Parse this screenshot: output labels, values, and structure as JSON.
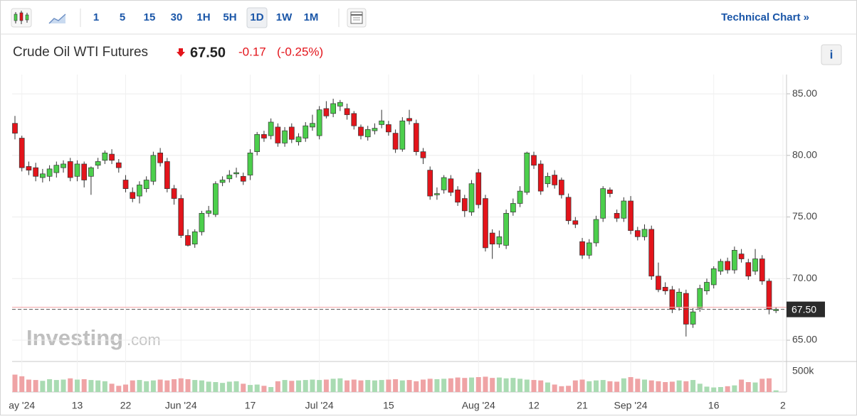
{
  "toolbar": {
    "intervals": [
      "1",
      "5",
      "15",
      "30",
      "1H",
      "5H",
      "1D",
      "1W",
      "1M"
    ],
    "selected": 6,
    "link": "Technical Chart »"
  },
  "header": {
    "title": "Crude Oil WTI Futures",
    "price": "67.50",
    "change": "-0.17",
    "change_pct": "(-0.25%)",
    "info": "i"
  },
  "watermark": {
    "brand": "Investing",
    "suffix": ".com"
  },
  "chart_data": {
    "type": "candlestick",
    "categories": [
      null,
      "ay '24",
      null,
      null,
      null,
      null,
      null,
      null,
      null,
      "13",
      null,
      null,
      null,
      null,
      null,
      null,
      "22",
      null,
      null,
      null,
      null,
      null,
      null,
      null,
      "Jun '24",
      null,
      null,
      null,
      null,
      null,
      null,
      null,
      null,
      null,
      "17",
      null,
      null,
      null,
      null,
      null,
      null,
      null,
      null,
      null,
      "Jul '24",
      null,
      null,
      null,
      null,
      null,
      null,
      null,
      null,
      null,
      "15",
      null,
      null,
      null,
      null,
      null,
      null,
      null,
      null,
      null,
      null,
      null,
      null,
      "Aug '24",
      null,
      null,
      null,
      null,
      null,
      null,
      null,
      "12",
      null,
      null,
      null,
      null,
      null,
      null,
      "21",
      null,
      null,
      null,
      null,
      null,
      null,
      "Sep '24",
      null,
      null,
      null,
      null,
      null,
      null,
      null,
      null,
      null,
      null,
      null,
      "16",
      null,
      null,
      null,
      null,
      null,
      null,
      null,
      null,
      null,
      "2"
    ],
    "open": [
      82.6,
      81.4,
      79.1,
      79.0,
      78.2,
      78.3,
      78.6,
      79.0,
      79.5,
      78.3,
      79.3,
      78.3,
      79.2,
      79.6,
      80.1,
      79.4,
      78.0,
      77.0,
      76.7,
      77.3,
      77.9,
      80.2,
      79.5,
      77.3,
      76.5,
      73.5,
      72.8,
      73.8,
      75.3,
      75.2,
      77.8,
      78.1,
      78.5,
      78.3,
      78.4,
      80.3,
      81.7,
      81.6,
      82.3,
      81.0,
      82.3,
      81.1,
      81.4,
      82.3,
      81.6,
      83.8,
      83.4,
      84.0,
      83.8,
      83.4,
      82.3,
      81.5,
      82.0,
      82.5,
      82.5,
      81.8,
      80.5,
      83.0,
      82.6,
      80.3,
      78.8,
      76.8,
      77.2,
      78.1,
      77.2,
      76.5,
      75.4,
      78.6,
      76.5,
      73.7,
      72.8,
      72.7,
      75.4,
      76.1,
      77.0,
      80.0,
      79.3,
      77.7,
      78.4,
      78.0,
      76.6,
      74.7,
      73.0,
      71.9,
      72.9,
      74.9,
      77.2,
      75.3,
      74.9,
      76.3,
      73.9,
      73.4,
      74.0,
      70.2,
      69.3,
      69.1,
      67.7,
      68.8,
      66.3,
      67.6,
      69.0,
      69.5,
      70.6,
      71.4,
      70.7,
      72.0,
      71.3,
      70.6,
      71.6,
      69.8,
      67.4,
      null
    ],
    "high": [
      83.2,
      81.6,
      79.5,
      79.4,
      78.9,
      79.2,
      79.5,
      79.6,
      79.8,
      79.6,
      79.5,
      79.1,
      79.8,
      80.4,
      80.5,
      79.7,
      78.4,
      77.4,
      77.9,
      78.3,
      80.3,
      80.6,
      79.8,
      77.6,
      76.8,
      74.0,
      74.0,
      75.5,
      75.9,
      77.9,
      78.3,
      78.8,
      79.0,
      78.6,
      80.5,
      81.9,
      82.0,
      83.0,
      82.6,
      82.3,
      82.6,
      81.8,
      82.7,
      83.3,
      84.0,
      84.4,
      84.6,
      84.5,
      84.2,
      83.6,
      82.5,
      82.4,
      82.6,
      83.7,
      82.8,
      82.1,
      83.1,
      83.7,
      82.9,
      80.6,
      79.1,
      77.4,
      78.4,
      78.4,
      77.5,
      76.8,
      78.0,
      78.9,
      76.8,
      74.0,
      73.9,
      75.6,
      76.5,
      77.5,
      80.3,
      80.3,
      79.6,
      78.6,
      78.8,
      78.2,
      76.9,
      75.0,
      73.3,
      73.2,
      75.1,
      77.5,
      77.4,
      75.6,
      76.6,
      76.7,
      74.2,
      74.4,
      74.3,
      71.3,
      69.7,
      69.4,
      69.2,
      69.1,
      67.6,
      69.5,
      70.0,
      71.0,
      71.6,
      71.7,
      72.6,
      72.4,
      71.6,
      72.4,
      71.9,
      70.0,
      67.7,
      null
    ],
    "low": [
      81.3,
      78.7,
      78.4,
      77.9,
      77.8,
      77.9,
      78.2,
      78.6,
      77.9,
      77.9,
      77.4,
      76.8,
      78.9,
      79.3,
      79.3,
      78.6,
      77.0,
      76.2,
      76.1,
      77.0,
      77.6,
      79.1,
      77.0,
      76.0,
      73.3,
      72.6,
      72.5,
      73.5,
      75.0,
      75.0,
      77.5,
      77.8,
      78.2,
      77.6,
      78.0,
      80.0,
      81.1,
      81.3,
      80.7,
      80.7,
      81.0,
      80.8,
      81.1,
      82.0,
      81.3,
      83.0,
      83.1,
      83.6,
      82.9,
      82.1,
      81.3,
      81.2,
      81.7,
      82.2,
      81.6,
      80.2,
      80.3,
      82.5,
      80.0,
      79.3,
      76.4,
      76.4,
      76.9,
      76.7,
      75.9,
      75.0,
      75.1,
      75.7,
      72.2,
      71.6,
      72.5,
      72.4,
      75.1,
      75.8,
      76.8,
      78.9,
      76.8,
      77.4,
      77.3,
      76.5,
      74.4,
      74.1,
      71.6,
      71.6,
      72.6,
      74.6,
      76.6,
      74.6,
      74.6,
      73.6,
      73.1,
      73.1,
      69.9,
      68.9,
      68.7,
      67.2,
      67.4,
      65.3,
      66.0,
      67.3,
      68.7,
      69.2,
      70.3,
      70.4,
      70.4,
      71.3,
      69.9,
      70.3,
      69.5,
      67.1,
      67.2,
      null
    ],
    "close": [
      81.8,
      79.0,
      78.8,
      78.3,
      78.5,
      78.9,
      79.2,
      79.3,
      78.2,
      79.3,
      78.0,
      79.0,
      79.5,
      80.2,
      79.6,
      79.0,
      77.3,
      76.5,
      77.6,
      78.0,
      80.0,
      79.4,
      77.3,
      76.5,
      73.5,
      72.7,
      73.8,
      75.3,
      75.5,
      77.7,
      78.0,
      78.4,
      78.6,
      77.9,
      80.2,
      81.7,
      81.4,
      82.7,
      81.0,
      82.0,
      81.3,
      81.5,
      82.4,
      82.6,
      83.7,
      83.2,
      84.2,
      84.3,
      83.3,
      82.4,
      81.6,
      82.1,
      82.2,
      82.8,
      81.9,
      80.5,
      82.8,
      82.8,
      80.3,
      79.8,
      76.7,
      76.9,
      78.2,
      77.0,
      76.2,
      75.5,
      77.7,
      76.0,
      72.5,
      72.8,
      73.4,
      75.3,
      76.1,
      77.1,
      80.2,
      79.2,
      77.1,
      78.3,
      77.6,
      76.8,
      74.7,
      74.4,
      71.9,
      72.9,
      74.8,
      77.3,
      76.9,
      74.9,
      76.3,
      73.9,
      73.4,
      74.0,
      70.2,
      69.1,
      69.0,
      67.5,
      68.9,
      66.3,
      67.3,
      69.2,
      69.7,
      70.8,
      71.4,
      70.7,
      72.3,
      71.6,
      70.2,
      71.6,
      69.8,
      67.5,
      67.5,
      null
    ],
    "volume": [
      420000,
      380000,
      300000,
      290000,
      270000,
      310000,
      290000,
      300000,
      330000,
      300000,
      310000,
      290000,
      280000,
      260000,
      200000,
      150000,
      180000,
      280000,
      290000,
      260000,
      280000,
      300000,
      280000,
      310000,
      330000,
      310000,
      290000,
      280000,
      250000,
      240000,
      220000,
      250000,
      260000,
      200000,
      170000,
      180000,
      150000,
      120000,
      260000,
      290000,
      270000,
      280000,
      290000,
      300000,
      290000,
      300000,
      320000,
      330000,
      280000,
      300000,
      280000,
      290000,
      280000,
      290000,
      300000,
      310000,
      280000,
      290000,
      260000,
      300000,
      320000,
      310000,
      320000,
      330000,
      350000,
      340000,
      350000,
      360000,
      370000,
      340000,
      350000,
      330000,
      340000,
      320000,
      300000,
      290000,
      280000,
      230000,
      180000,
      140000,
      150000,
      280000,
      300000,
      260000,
      280000,
      290000,
      260000,
      250000,
      330000,
      360000,
      320000,
      300000,
      280000,
      260000,
      240000,
      250000,
      280000,
      260000,
      290000,
      200000,
      130000,
      110000,
      120000,
      140000,
      160000,
      300000,
      240000,
      230000,
      320000,
      330000,
      40000,
      null
    ],
    "up_color": "#4ccf4c",
    "down_color": "#e3141b",
    "vol_up_color": "#a9dbb2",
    "vol_down_color": "#efa3a5",
    "ylim": [
      63.33,
      86.56
    ],
    "yticks": [
      {
        "value": 65,
        "label": "65.00"
      },
      {
        "value": 70,
        "label": "70.00"
      },
      {
        "value": 75,
        "label": "75.00"
      },
      {
        "value": 80,
        "label": "80.00"
      },
      {
        "value": 85,
        "label": "85.00"
      }
    ],
    "vol_ylim": [
      0,
      720000
    ],
    "vol_yticks": [
      {
        "value": 500000,
        "label": "500k"
      }
    ],
    "last_price": {
      "value": 67.5,
      "label": "67.50"
    },
    "prev_close": 67.67,
    "grid": true
  }
}
